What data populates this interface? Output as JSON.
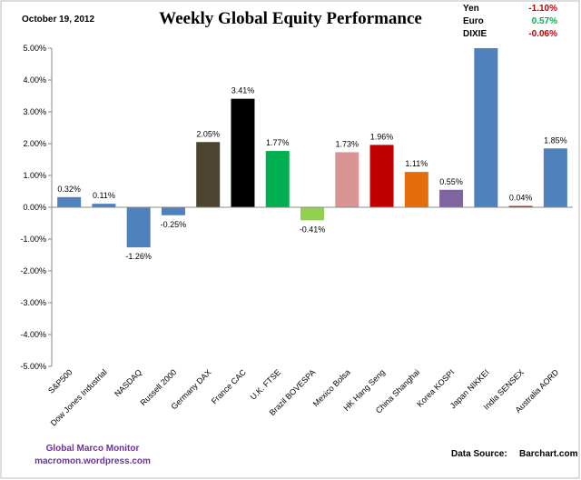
{
  "chart_data": {
    "type": "bar",
    "title": "Weekly Global Equity Performance",
    "date": "October 19, 2012",
    "fx": [
      {
        "name": "Yen",
        "value": "-1.10%",
        "color": "#c00000"
      },
      {
        "name": "Euro",
        "value": "0.57%",
        "color": "#00b050"
      },
      {
        "name": "DIXIE",
        "value": "-0.06%",
        "color": "#c00000"
      }
    ],
    "footer_left": [
      "Global  Marco Monitor",
      "macromon.wordpress.com"
    ],
    "footer_right": [
      "Data Source:",
      "Barchart.com"
    ],
    "categories": [
      "S&P500",
      "Dow Jones Industrial",
      "NASDAQ",
      "Russell 2000",
      "Germany DAX",
      "France CAC",
      "U.K. FTSE",
      "Brazil BOVESPA",
      "Mexico Bolsa",
      "HK Hang Seng",
      "China Shanghai",
      "Korea KOSPI",
      "Japan NIKKEI",
      "India SENSEX",
      "Australia AORD"
    ],
    "values": [
      0.32,
      0.11,
      -1.26,
      -0.25,
      2.05,
      3.41,
      1.77,
      -0.41,
      1.73,
      1.96,
      1.11,
      0.55,
      5.1,
      0.04,
      1.85
    ],
    "value_labels": [
      "0.32%",
      "0.11%",
      "-1.26%",
      "-0.25%",
      "2.05%",
      "3.41%",
      "1.77%",
      "-0.41%",
      "1.73%",
      "1.96%",
      "1.11%",
      "0.55%",
      null,
      "0.04%",
      "1.85%"
    ],
    "colors": [
      "#4f81bd",
      "#4f81bd",
      "#4f81bd",
      "#4f81bd",
      "#4d4430",
      "#000000",
      "#00b050",
      "#92d050",
      "#d99594",
      "#c00000",
      "#e46c0a",
      "#8064a2",
      "#4f81bd",
      "#a00000",
      "#4f81bd"
    ],
    "ylim": [
      -5,
      5
    ],
    "yticks": [
      {
        "value": -5,
        "label": "-5.00%"
      },
      {
        "value": -4,
        "label": "-4.00%"
      },
      {
        "value": -3,
        "label": "-3.00%"
      },
      {
        "value": -2,
        "label": "-2.00%"
      },
      {
        "value": -1,
        "label": "-1.00%"
      },
      {
        "value": 0,
        "label": "0.00%"
      },
      {
        "value": 1,
        "label": "1.00%"
      },
      {
        "value": 2,
        "label": "2.00%"
      },
      {
        "value": 3,
        "label": "3.00%"
      },
      {
        "value": 4,
        "label": "4.00%"
      },
      {
        "value": 5,
        "label": "5.00%"
      }
    ]
  }
}
